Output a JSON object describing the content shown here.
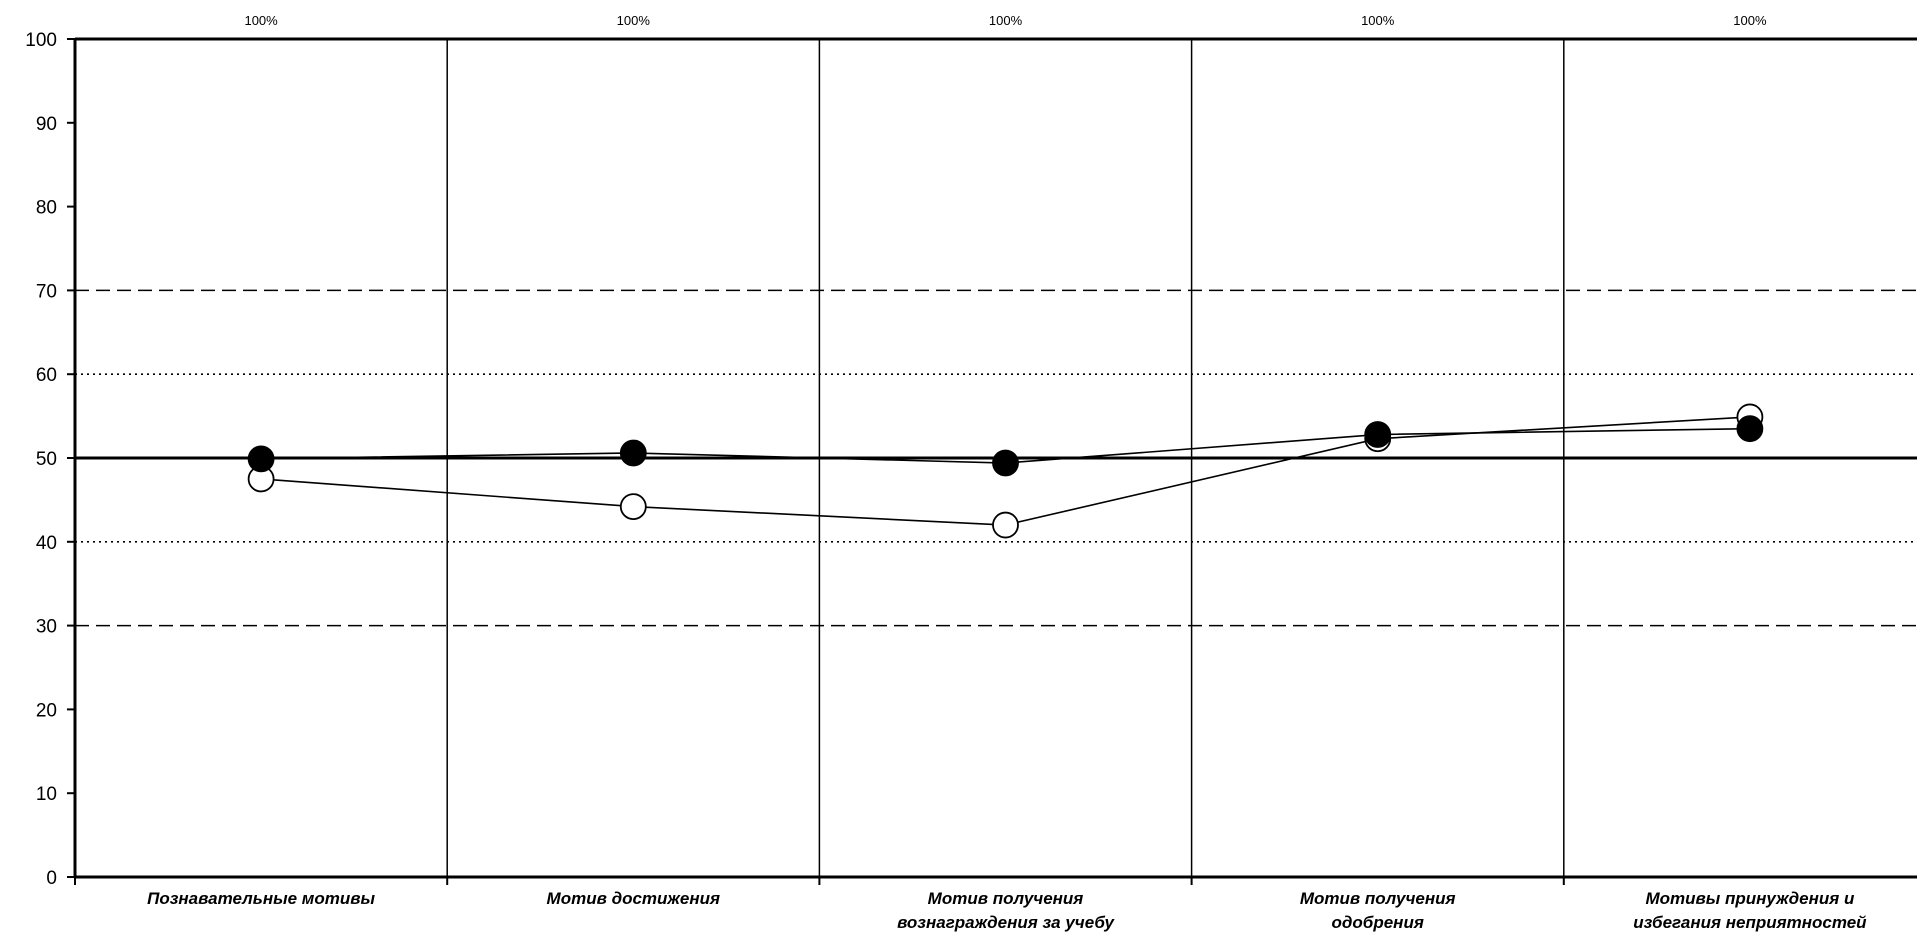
{
  "chart_data": {
    "type": "line",
    "categories": [
      [
        "Познавательные мотивы"
      ],
      [
        "Мотив достижения"
      ],
      [
        "Мотив получения",
        "вознаграждения за учебу"
      ],
      [
        "Мотив получения",
        "одобрения"
      ],
      [
        "Мотивы принуждения и",
        "избегания неприятностей"
      ]
    ],
    "top_labels": [
      "100%",
      "100%",
      "100%",
      "100%",
      "100%"
    ],
    "ylim": [
      0,
      100
    ],
    "yticks": [
      0,
      10,
      20,
      30,
      40,
      50,
      60,
      70,
      80,
      90,
      100
    ],
    "reference_lines": {
      "solid": [
        50
      ],
      "dashed": [
        30,
        70
      ],
      "dotted": [
        40,
        60
      ]
    },
    "series": [
      {
        "marker": "open-circle",
        "color": "#ffffff",
        "values": [
          47.5,
          44.2,
          42.0,
          52.3,
          54.9
        ]
      },
      {
        "marker": "filled-circle",
        "color": "#000000",
        "values": [
          49.9,
          50.6,
          49.4,
          52.8,
          53.5
        ]
      }
    ],
    "title": "",
    "xlabel": "",
    "ylabel": ""
  }
}
